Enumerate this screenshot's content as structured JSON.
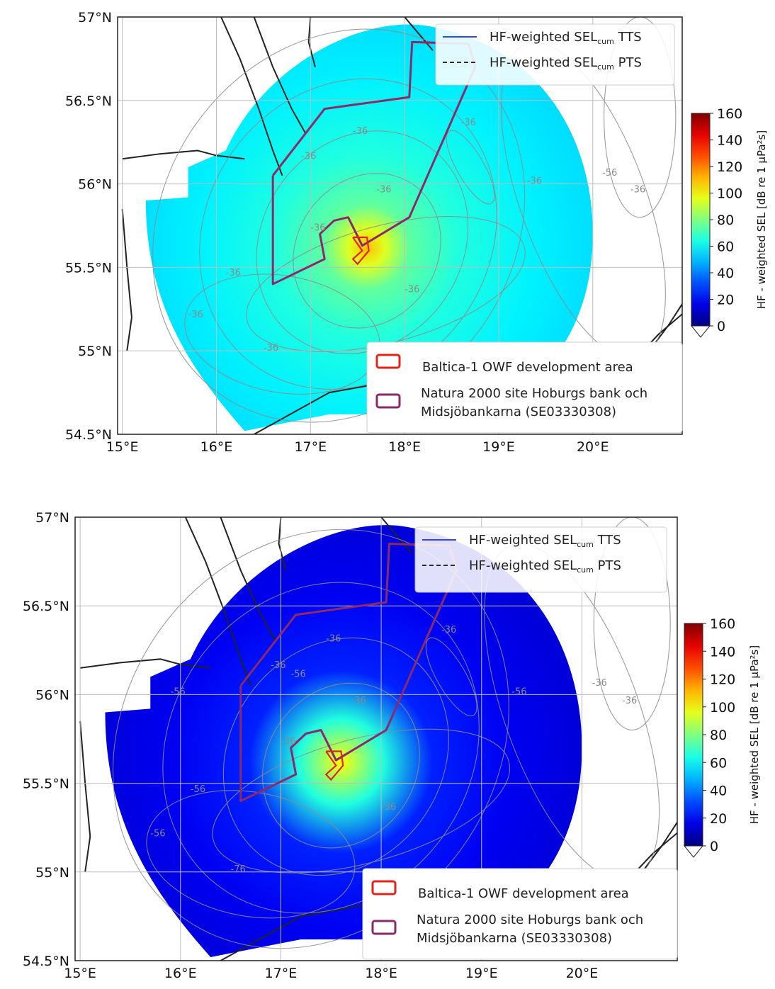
{
  "maps": [
    {
      "id": "top",
      "y_ticks": [
        "57°N",
        "56.5°N",
        "56°N",
        "55.5°N",
        "55°N",
        "54.5°N"
      ],
      "x_ticks": [
        "15°E",
        "16°E",
        "17°E",
        "18°E",
        "19°E",
        "20°E"
      ],
      "extent": {
        "lon": [
          14.95,
          20.95
        ],
        "lat": [
          54.5,
          57.0
        ]
      },
      "field_peak_dB": 110,
      "field_background_dB": 55,
      "legend_lines": [
        {
          "label_prefix": "HF-weighted SEL",
          "sub": "cum",
          "suffix": " TTS",
          "style": "solid",
          "color": "#1f2bd6"
        },
        {
          "label_prefix": "HF-weighted SEL",
          "sub": "cum",
          "suffix": " PTS",
          "style": "dashed",
          "color": "#111111"
        }
      ],
      "legend_areas": [
        {
          "label": "Baltica-1 OWF development area",
          "color": "#e2231a"
        },
        {
          "label_line1": "Natura 2000 site Hoburgs bank och",
          "label_line2": "Midsjöbankarna (SE03330308)",
          "color": "#8b2a6b"
        }
      ],
      "colorbar": {
        "label": "HF - weighted SEL [dB re 1 μPa²s]",
        "ticks": [
          "160",
          "140",
          "120",
          "100",
          "80",
          "60",
          "40",
          "20",
          "0"
        ],
        "range": [
          0,
          160
        ],
        "extend": "min"
      },
      "contour_labels": [
        "-36",
        "-36",
        "-36",
        "-36",
        "-36",
        "-56",
        "-36",
        "-36",
        "-36",
        "-36",
        "-36",
        "-36"
      ]
    },
    {
      "id": "bottom",
      "y_ticks": [
        "57°N",
        "56.5°N",
        "56°N",
        "55.5°N",
        "55°N",
        "54.5°N"
      ],
      "x_ticks": [
        "15°E",
        "16°E",
        "17°E",
        "18°E",
        "19°E",
        "20°E"
      ],
      "extent": {
        "lon": [
          14.95,
          20.95
        ],
        "lat": [
          54.5,
          57.0
        ]
      },
      "field_peak_dB": 100,
      "field_background_dB": 15,
      "legend_lines": [
        {
          "label_prefix": "HF-weighted SEL",
          "sub": "cum",
          "suffix": " TTS",
          "style": "solid",
          "color": "#1f2bd6"
        },
        {
          "label_prefix": "HF-weighted SEL",
          "sub": "cum",
          "suffix": " PTS",
          "style": "dashed",
          "color": "#111111"
        }
      ],
      "legend_areas": [
        {
          "label": "Baltica-1 OWF development area",
          "color": "#e2231a"
        },
        {
          "label_line1": "Natura 2000 site Hoburgs bank och",
          "label_line2": "Midsjöbankarna (SE03330308)",
          "color": "#8b2a6b"
        }
      ],
      "colorbar": {
        "label": "HF - weighted SEL [dB re 1 μPa²s]",
        "ticks": [
          "160",
          "140",
          "120",
          "100",
          "80",
          "60",
          "40",
          "20",
          "0"
        ],
        "range": [
          0,
          160
        ],
        "extend": "min"
      },
      "contour_labels": [
        "-36",
        "-36",
        "-36",
        "-36",
        "-56",
        "-36",
        "-36",
        "-56",
        "-56",
        "-36",
        "-76",
        "-36",
        "-56",
        "-56"
      ]
    }
  ]
}
